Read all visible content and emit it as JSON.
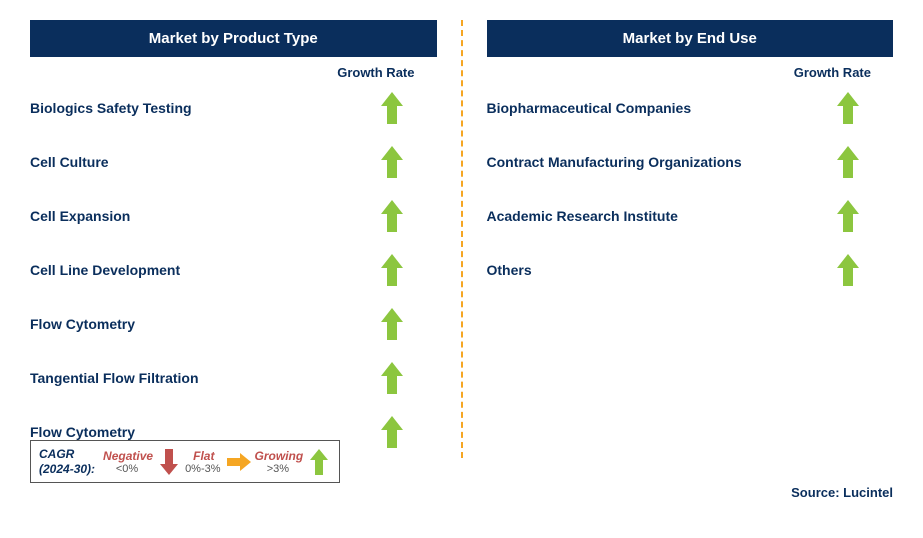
{
  "left": {
    "header": "Market by Product Type",
    "growth_header": "Growth Rate",
    "items": [
      {
        "label": "Biologics Safety Testing",
        "trend": "up"
      },
      {
        "label": "Cell Culture",
        "trend": "up"
      },
      {
        "label": "Cell Expansion",
        "trend": "up"
      },
      {
        "label": "Cell Line Development",
        "trend": "up"
      },
      {
        "label": "Flow Cytometry",
        "trend": "up"
      },
      {
        "label": "Tangential Flow Filtration",
        "trend": "up"
      },
      {
        "label": "Flow Cytometry",
        "trend": "up"
      }
    ]
  },
  "right": {
    "header": "Market by End Use",
    "growth_header": "Growth Rate",
    "items": [
      {
        "label": "Biopharmaceutical Companies",
        "trend": "up"
      },
      {
        "label": "Contract Manufacturing Organizations",
        "trend": "up"
      },
      {
        "label": "Academic Research Institute",
        "trend": "up"
      },
      {
        "label": "Others",
        "trend": "up"
      }
    ]
  },
  "legend": {
    "title_line1": "CAGR",
    "title_line2": "(2024-30):",
    "negative_label": "Negative",
    "negative_val": "<0%",
    "flat_label": "Flat",
    "flat_val": "0%-3%",
    "growing_label": "Growing",
    "growing_val": ">3%"
  },
  "source": "Source: Lucintel",
  "colors": {
    "header_bg": "#0a2e5c",
    "text_navy": "#0a2e5c",
    "arrow_green": "#8cc63f",
    "arrow_red": "#c0504d",
    "arrow_yellow": "#f5a623",
    "legend_label": "#c0504d",
    "divider": "#f5a623"
  }
}
